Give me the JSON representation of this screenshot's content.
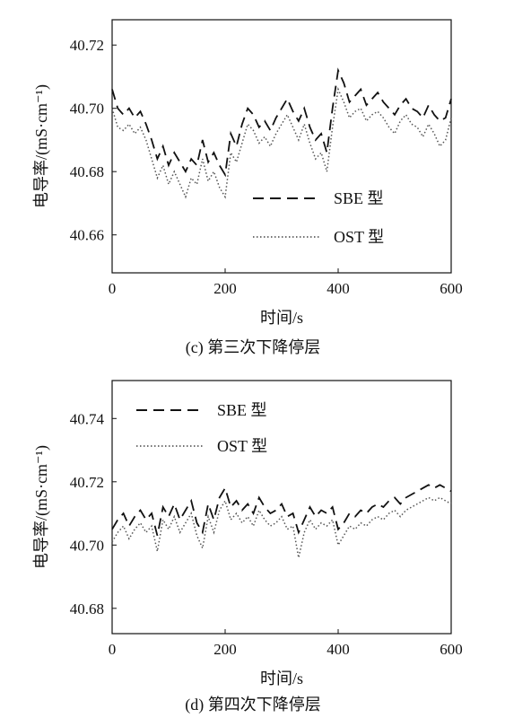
{
  "chart_data": [
    {
      "type": "line",
      "caption": "(c) 第三次下降停层",
      "xlabel": "时间/s",
      "ylabel": "电导率/(mS·cm⁻¹)",
      "xlim": [
        0,
        600
      ],
      "ylim": [
        40.648,
        40.728
      ],
      "xticks": [
        "0",
        "200",
        "400",
        "600"
      ],
      "xtick_values": [
        0,
        200,
        400,
        600
      ],
      "yticks": [
        "40.66",
        "40.68",
        "40.70",
        "40.72"
      ],
      "ytick_values": [
        40.66,
        40.68,
        40.7,
        40.72
      ],
      "legend_position": "middle-right",
      "x": [
        0,
        10,
        20,
        30,
        40,
        50,
        60,
        70,
        80,
        90,
        100,
        110,
        120,
        130,
        140,
        150,
        160,
        170,
        180,
        190,
        200,
        210,
        220,
        230,
        240,
        250,
        260,
        270,
        280,
        290,
        300,
        310,
        320,
        330,
        340,
        350,
        360,
        370,
        380,
        390,
        400,
        410,
        420,
        430,
        440,
        450,
        460,
        470,
        480,
        490,
        500,
        510,
        520,
        530,
        540,
        550,
        560,
        570,
        580,
        590,
        600
      ],
      "series": [
        {
          "name": "SBE 型",
          "style": "dashed",
          "color": "#111111",
          "values": [
            40.706,
            40.7,
            40.698,
            40.7,
            40.697,
            40.699,
            40.695,
            40.69,
            40.684,
            40.688,
            40.682,
            40.686,
            40.683,
            40.68,
            40.684,
            40.682,
            40.69,
            40.683,
            40.686,
            40.682,
            40.679,
            40.692,
            40.688,
            40.695,
            40.7,
            40.698,
            40.694,
            40.696,
            40.693,
            40.697,
            40.7,
            40.703,
            40.699,
            40.696,
            40.7,
            40.694,
            40.69,
            40.692,
            40.686,
            40.7,
            40.712,
            40.708,
            40.702,
            40.704,
            40.706,
            40.701,
            40.703,
            40.705,
            40.702,
            40.7,
            40.698,
            40.701,
            40.703,
            40.7,
            40.699,
            40.697,
            40.701,
            40.698,
            40.696,
            40.697,
            40.703
          ]
        },
        {
          "name": "OST 型",
          "style": "dotted",
          "color": "#555555",
          "values": [
            40.7,
            40.694,
            40.693,
            40.695,
            40.692,
            40.694,
            40.69,
            40.684,
            40.678,
            40.682,
            40.676,
            40.68,
            40.676,
            40.672,
            40.678,
            40.676,
            40.684,
            40.677,
            40.68,
            40.675,
            40.672,
            40.686,
            40.683,
            40.689,
            40.695,
            40.693,
            40.689,
            40.691,
            40.688,
            40.692,
            40.695,
            40.698,
            40.694,
            40.69,
            40.695,
            40.689,
            40.684,
            40.686,
            40.68,
            40.694,
            40.706,
            40.702,
            40.697,
            40.699,
            40.7,
            40.696,
            40.698,
            40.699,
            40.697,
            40.694,
            40.692,
            40.696,
            40.698,
            40.695,
            40.694,
            40.691,
            40.695,
            40.692,
            40.688,
            40.69,
            40.697
          ]
        }
      ]
    },
    {
      "type": "line",
      "caption": "(d) 第四次下降停层",
      "xlabel": "时间/s",
      "ylabel": "电导率/(mS·cm⁻¹)",
      "xlim": [
        0,
        600
      ],
      "ylim": [
        40.672,
        40.752
      ],
      "xticks": [
        "0",
        "200",
        "400",
        "600"
      ],
      "xtick_values": [
        0,
        200,
        400,
        600
      ],
      "yticks": [
        "40.68",
        "40.70",
        "40.72",
        "40.74"
      ],
      "ytick_values": [
        40.68,
        40.7,
        40.72,
        40.74
      ],
      "legend_position": "top-left",
      "x": [
        0,
        10,
        20,
        30,
        40,
        50,
        60,
        70,
        80,
        90,
        100,
        110,
        120,
        130,
        140,
        150,
        160,
        170,
        180,
        190,
        200,
        210,
        220,
        230,
        240,
        250,
        260,
        270,
        280,
        290,
        300,
        310,
        320,
        330,
        340,
        350,
        360,
        370,
        380,
        390,
        400,
        410,
        420,
        430,
        440,
        450,
        460,
        470,
        480,
        490,
        500,
        510,
        520,
        530,
        540,
        550,
        560,
        570,
        580,
        590,
        600
      ],
      "series": [
        {
          "name": "SBE 型",
          "style": "dashed",
          "color": "#111111",
          "values": [
            40.705,
            40.708,
            40.71,
            40.706,
            40.709,
            40.711,
            40.708,
            40.71,
            40.703,
            40.712,
            40.709,
            40.713,
            40.708,
            40.711,
            40.714,
            40.707,
            40.704,
            40.713,
            40.708,
            40.715,
            40.718,
            40.712,
            40.714,
            40.711,
            40.713,
            40.71,
            40.715,
            40.712,
            40.71,
            40.711,
            40.713,
            40.709,
            40.71,
            40.704,
            40.708,
            40.712,
            40.709,
            40.711,
            40.71,
            40.712,
            40.705,
            40.707,
            40.71,
            40.709,
            40.711,
            40.71,
            40.712,
            40.713,
            40.712,
            40.714,
            40.715,
            40.713,
            40.715,
            40.716,
            40.717,
            40.718,
            40.719,
            40.718,
            40.719,
            40.718,
            40.717
          ]
        },
        {
          "name": "OST 型",
          "style": "dotted",
          "color": "#555555",
          "values": [
            40.701,
            40.704,
            40.706,
            40.702,
            40.705,
            40.707,
            40.704,
            40.706,
            40.698,
            40.708,
            40.705,
            40.709,
            40.704,
            40.707,
            40.71,
            40.703,
            40.699,
            40.709,
            40.704,
            40.711,
            40.714,
            40.708,
            40.71,
            40.707,
            40.709,
            40.706,
            40.711,
            40.708,
            40.706,
            40.707,
            40.709,
            40.705,
            40.706,
            40.696,
            40.704,
            40.708,
            40.705,
            40.707,
            40.706,
            40.708,
            40.7,
            40.703,
            40.706,
            40.705,
            40.707,
            40.706,
            40.708,
            40.709,
            40.708,
            40.71,
            40.711,
            40.709,
            40.711,
            40.712,
            40.713,
            40.714,
            40.715,
            40.714,
            40.715,
            40.714,
            40.713
          ]
        }
      ]
    }
  ]
}
